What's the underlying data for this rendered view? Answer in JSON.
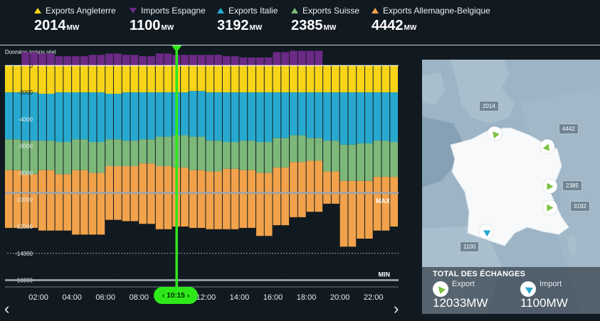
{
  "legend": [
    {
      "label": "Exports Angleterre",
      "value": "2014",
      "unit": "MW",
      "color": "#f7d418",
      "icon": "triangle-up-icon"
    },
    {
      "label": "Imports Espagne",
      "value": "1100",
      "unit": "MW",
      "color": "#6b2a86",
      "icon": "triangle-down-icon"
    },
    {
      "label": "Exports Italie",
      "value": "3192",
      "unit": "MW",
      "color": "#27a9cf",
      "icon": "triangle-up-icon"
    },
    {
      "label": "Exports Suisse",
      "value": "2385",
      "unit": "MW",
      "color": "#7db87a",
      "icon": "triangle-up-icon"
    },
    {
      "label": "Exports Allemagne-Belgique",
      "value": "4442",
      "unit": "MW",
      "color": "#f2a24a",
      "icon": "triangle-up-icon"
    }
  ],
  "subtitle": "Données temps réel",
  "time_cursor": {
    "label": "10:15",
    "prev_icon": "chevron-left-icon",
    "next_icon": "chevron-right-icon"
  },
  "nav": {
    "prev": "‹",
    "next": "›"
  },
  "map": {
    "value_labels": {
      "angleterre": "2014",
      "allemagne_belgique": "4442",
      "suisse": "2385",
      "italie": "3192",
      "espagne": "1100"
    },
    "totals_title": "TOTAL DES ÉCHANGES",
    "export_label": "Export",
    "export_value": "12033MW",
    "import_label": "Import",
    "import_value": "1100MW"
  },
  "chart_data": {
    "type": "bar",
    "stacked": true,
    "grid": false,
    "xlim": [
      0,
      23.5
    ],
    "ylim": [
      -16500,
      1500
    ],
    "y_ticks": [
      0,
      -2000,
      -4000,
      -6000,
      -8000,
      -10000,
      -12000,
      -14000,
      -16000
    ],
    "y_tick_labels": [
      "0",
      "-2000",
      "-4000",
      "-6000",
      "-8000",
      "-10000",
      "-12000",
      "-14000",
      "-16000"
    ],
    "x_ticks": [
      2,
      4,
      6,
      8,
      10,
      12,
      14,
      16,
      18,
      20,
      22
    ],
    "x_tick_labels": [
      "02:00",
      "04:00",
      "06:00",
      "08:00",
      "10:00",
      "12:00",
      "14:00",
      "16:00",
      "18:00",
      "20:00",
      "22:00"
    ],
    "ref_lines": [
      {
        "label": "MAX",
        "value": -9500
      },
      {
        "label": "MIN",
        "value": -16000
      }
    ],
    "colors": {
      "angleterre": "#f7d418",
      "espagne": "#6b2a86",
      "italie": "#27a9cf",
      "suisse": "#7db87a",
      "allemagne": "#f2a24a"
    },
    "bar_hours": [
      0,
      0.5,
      1,
      1.5,
      2,
      2.5,
      3,
      3.5,
      4,
      4.5,
      5,
      5.5,
      6,
      6.5,
      7,
      7.5,
      8,
      8.5,
      9,
      9.5,
      10,
      10.5,
      11,
      11.5,
      12,
      12.5,
      13,
      13.5,
      14,
      14.5,
      15,
      15.5,
      16,
      16.5,
      17,
      17.5,
      18,
      18.5,
      19,
      19.5,
      20,
      20.5,
      21,
      21.5,
      22,
      22.5,
      23
    ],
    "imports_espagne": [
      0,
      0,
      1000,
      1000,
      900,
      900,
      700,
      700,
      700,
      700,
      800,
      800,
      900,
      900,
      800,
      800,
      700,
      700,
      900,
      900,
      800,
      800,
      800,
      800,
      800,
      800,
      700,
      700,
      600,
      600,
      600,
      600,
      1000,
      1000,
      1100,
      1100,
      1100,
      1100,
      0,
      0,
      0,
      0,
      0,
      0,
      0,
      0,
      0
    ],
    "exports_angleterre": [
      2000,
      2000,
      2000,
      2000,
      2100,
      2100,
      2000,
      2000,
      2000,
      2000,
      2000,
      2000,
      2100,
      2100,
      2000,
      2000,
      2000,
      2000,
      2000,
      2000,
      2000,
      2000,
      1900,
      1900,
      2000,
      2000,
      2000,
      2000,
      2000,
      2000,
      2000,
      2000,
      2000,
      2000,
      2000,
      2000,
      2000,
      2000,
      2000,
      2000,
      2000,
      2000,
      2000,
      2000,
      2000,
      2000,
      2000
    ],
    "exports_italie": [
      3500,
      3500,
      3600,
      3600,
      3500,
      3500,
      3700,
      3700,
      3500,
      3500,
      3700,
      3700,
      3400,
      3400,
      3600,
      3600,
      3500,
      3500,
      3300,
      3300,
      3200,
      3200,
      3400,
      3400,
      3600,
      3600,
      3700,
      3700,
      3600,
      3600,
      3700,
      3700,
      3400,
      3400,
      3200,
      3200,
      3400,
      3400,
      3600,
      3600,
      3900,
      3900,
      3800,
      3800,
      3600,
      3600,
      3700
    ],
    "exports_suisse": [
      2300,
      2300,
      2500,
      2500,
      2200,
      2200,
      2400,
      2400,
      2300,
      2300,
      2300,
      2300,
      2000,
      2000,
      1900,
      1900,
      1800,
      1800,
      2200,
      2200,
      2400,
      2400,
      2500,
      2500,
      2300,
      2300,
      2000,
      2000,
      2200,
      2200,
      2300,
      2300,
      2200,
      2200,
      2000,
      2000,
      1700,
      1700,
      2300,
      2300,
      2700,
      2700,
      2800,
      2800,
      2700,
      2700,
      2600
    ],
    "exports_allemagne_belgique": [
      4300,
      4300,
      4000,
      4000,
      4500,
      4500,
      4200,
      4200,
      4800,
      4800,
      4600,
      4600,
      4000,
      4000,
      4100,
      4100,
      4500,
      4500,
      4700,
      4700,
      4400,
      4400,
      4300,
      4300,
      4300,
      4300,
      4500,
      4500,
      4300,
      4300,
      4700,
      4700,
      4300,
      4300,
      4100,
      4100,
      3800,
      3800,
      2400,
      2400,
      4900,
      4900,
      4300,
      4300,
      4000,
      4000,
      3700
    ]
  }
}
